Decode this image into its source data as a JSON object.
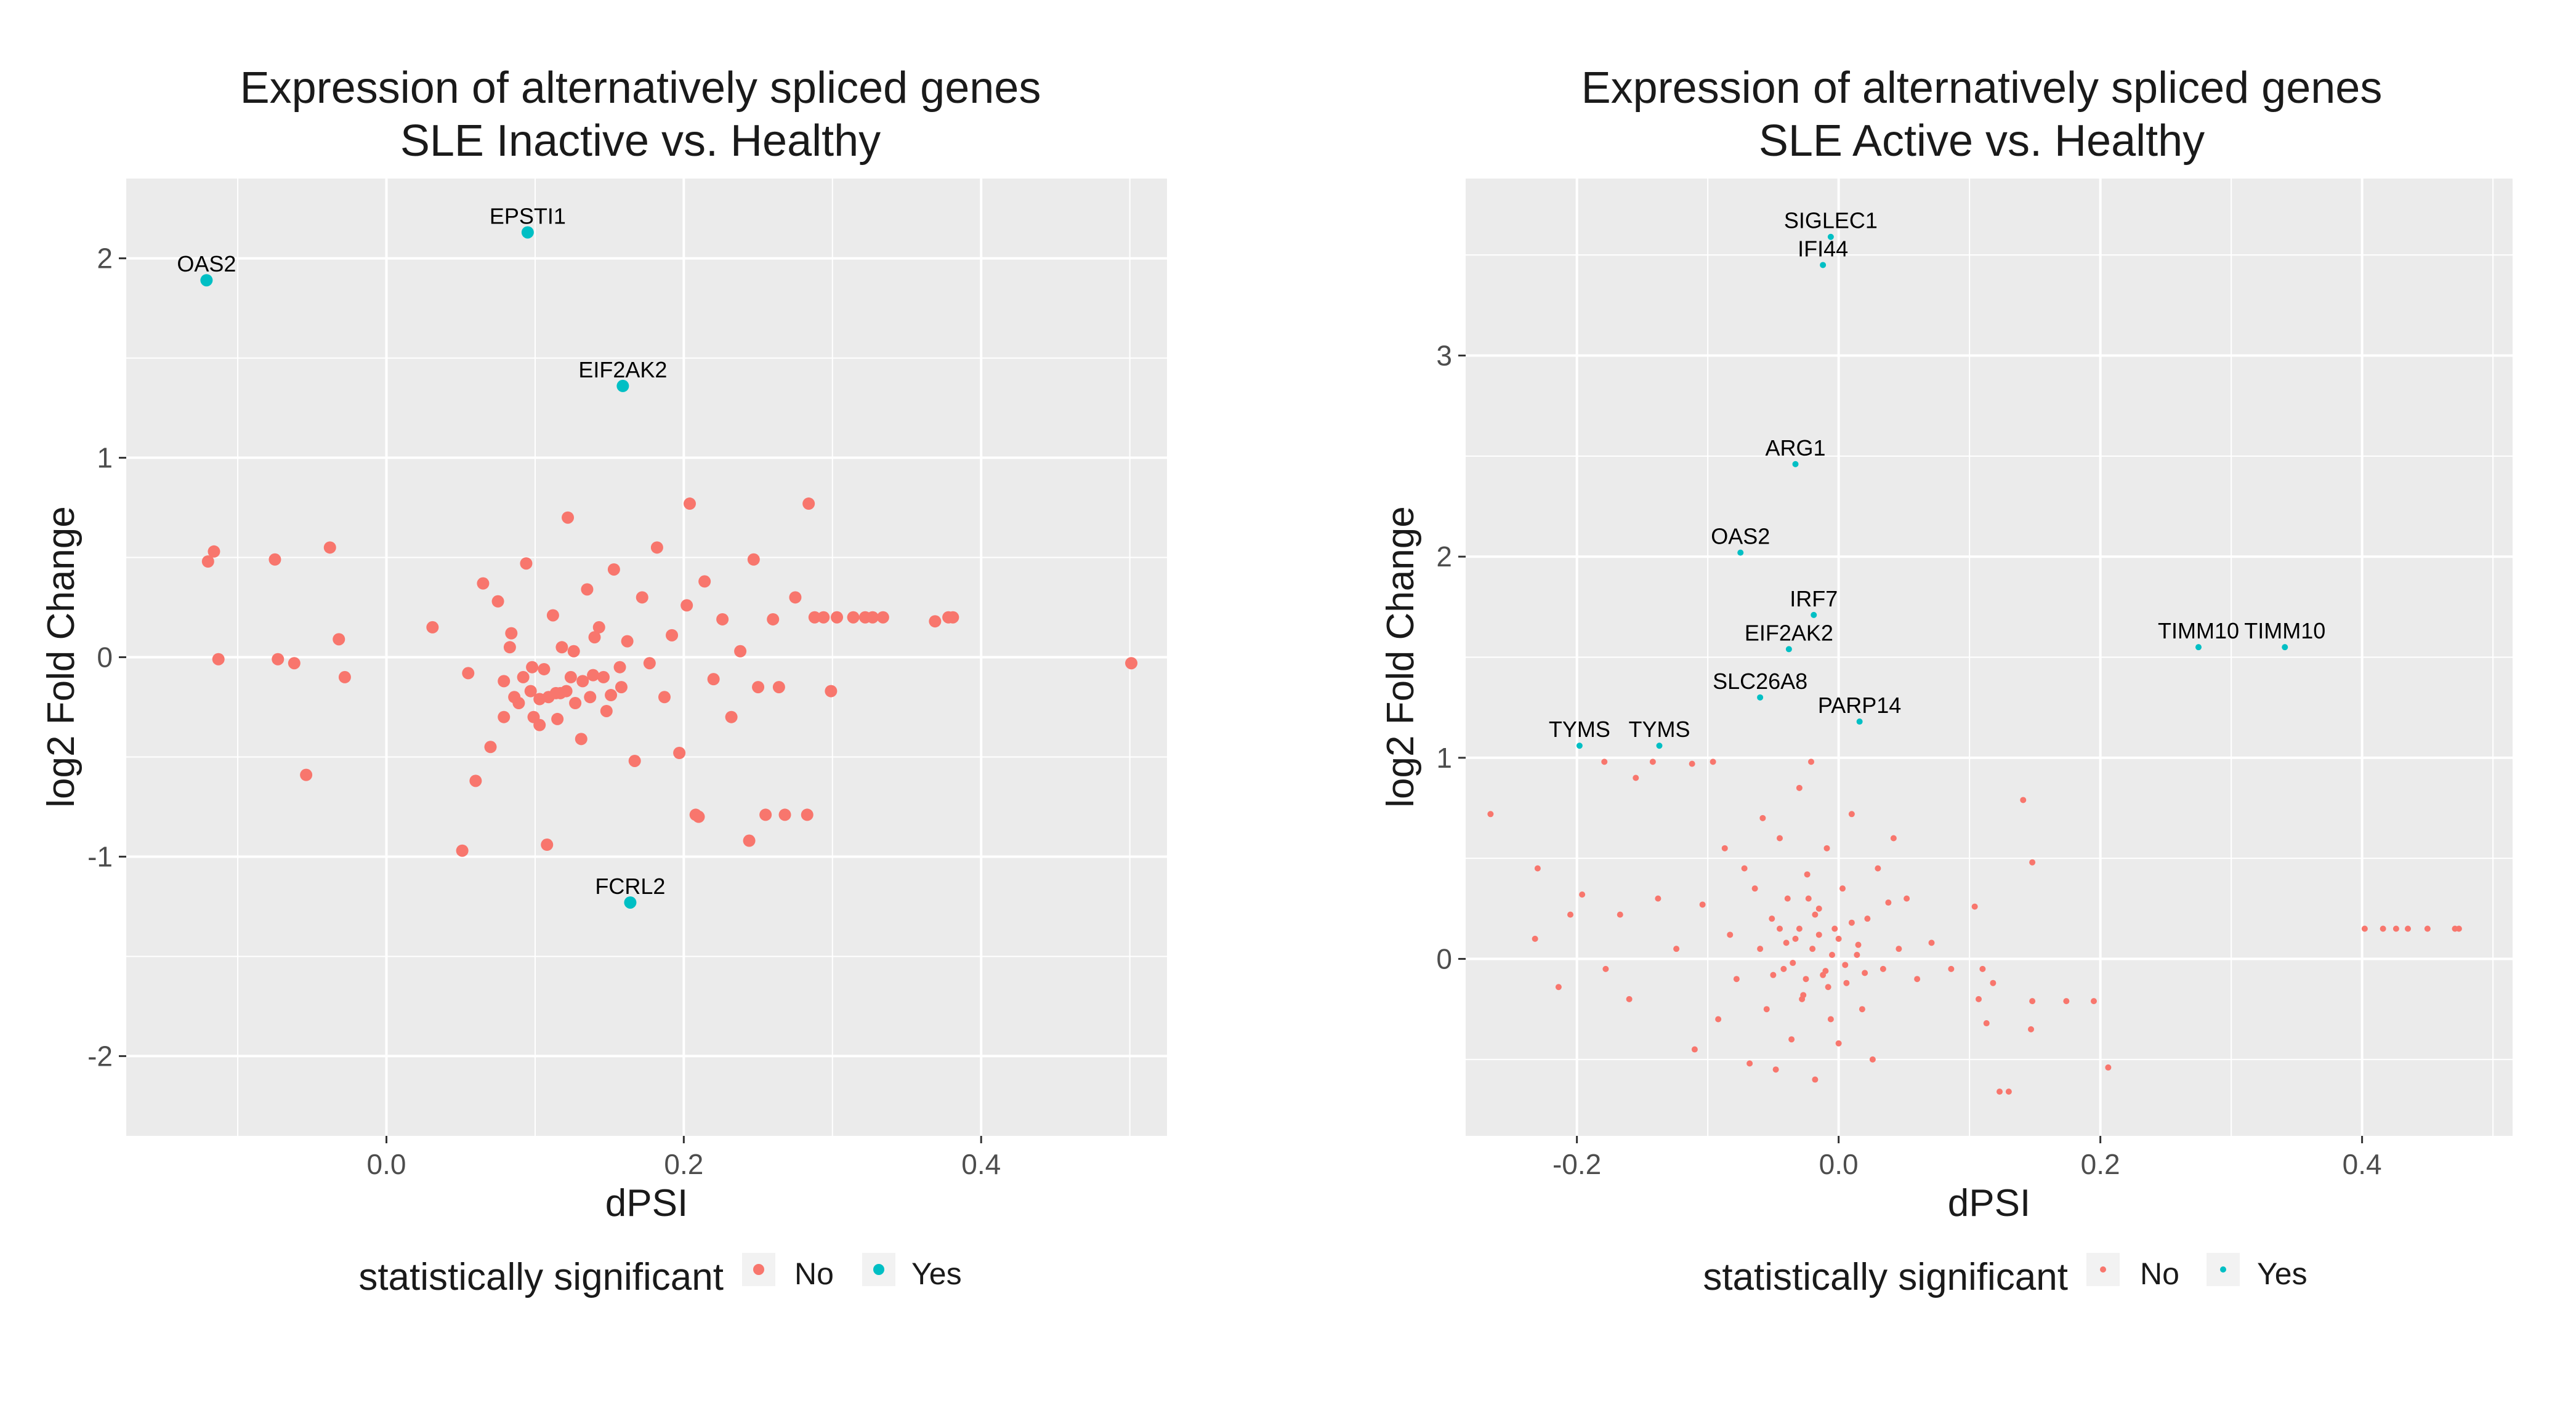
{
  "colors": {
    "no": "#F8766D",
    "yes": "#00BFC4",
    "panel": "#EBEBEB",
    "grid": "#FFFFFF",
    "text": "#1A1A1A",
    "axis": "#4D4D4D"
  },
  "chart_data": [
    {
      "type": "scatter",
      "title": [
        "Expression of alternatively spliced genes",
        "SLE Inactive vs. Healthy"
      ],
      "xlabel": "dPSI",
      "ylabel": "log2 Fold Change",
      "xlim": [
        -0.175,
        0.525
      ],
      "ylim": [
        -2.4,
        2.4
      ],
      "xticks": [
        0.0,
        0.2,
        0.4
      ],
      "xtick_labels": [
        "0.0",
        "0.2",
        "0.4"
      ],
      "yticks": [
        -2,
        -1,
        0,
        1,
        2
      ],
      "ytick_labels": [
        "-2",
        "-1",
        "0",
        "1",
        "2"
      ],
      "legend": {
        "title": "statistically significant",
        "position": "bottom",
        "entries": [
          "No",
          "Yes"
        ]
      },
      "series": [
        {
          "name": "No",
          "points": [
            [
              -0.12,
              0.48
            ],
            [
              -0.116,
              0.53
            ],
            [
              -0.113,
              -0.01
            ],
            [
              -0.075,
              0.49
            ],
            [
              -0.073,
              -0.01
            ],
            [
              -0.062,
              -0.03
            ],
            [
              -0.054,
              -0.59
            ],
            [
              -0.038,
              0.55
            ],
            [
              -0.032,
              0.09
            ],
            [
              -0.028,
              -0.1
            ],
            [
              0.031,
              0.15
            ],
            [
              0.051,
              -0.97
            ],
            [
              0.055,
              -0.08
            ],
            [
              0.06,
              -0.62
            ],
            [
              0.065,
              0.37
            ],
            [
              0.07,
              -0.45
            ],
            [
              0.075,
              0.28
            ],
            [
              0.079,
              -0.12
            ],
            [
              0.084,
              0.12
            ],
            [
              0.089,
              -0.23
            ],
            [
              0.094,
              0.47
            ],
            [
              0.098,
              -0.05
            ],
            [
              0.103,
              -0.34
            ],
            [
              0.108,
              -0.94
            ],
            [
              0.112,
              0.21
            ],
            [
              0.117,
              -0.18
            ],
            [
              0.122,
              0.7
            ],
            [
              0.126,
              0.03
            ],
            [
              0.131,
              -0.41
            ],
            [
              0.135,
              0.34
            ],
            [
              0.139,
              -0.09
            ],
            [
              0.143,
              0.15
            ],
            [
              0.148,
              -0.27
            ],
            [
              0.153,
              0.44
            ],
            [
              0.158,
              -0.15
            ],
            [
              0.162,
              0.08
            ],
            [
              0.167,
              -0.52
            ],
            [
              0.172,
              0.3
            ],
            [
              0.177,
              -0.03
            ],
            [
              0.182,
              0.55
            ],
            [
              0.187,
              -0.2
            ],
            [
              0.192,
              0.11
            ],
            [
              0.197,
              -0.48
            ],
            [
              0.202,
              0.26
            ],
            [
              0.208,
              -0.79
            ],
            [
              0.214,
              0.38
            ],
            [
              0.22,
              -0.11
            ],
            [
              0.226,
              0.19
            ],
            [
              0.232,
              -0.3
            ],
            [
              0.238,
              0.03
            ],
            [
              0.204,
              0.77
            ],
            [
              0.21,
              -0.8
            ],
            [
              0.247,
              0.49
            ],
            [
              0.244,
              -0.92
            ],
            [
              0.25,
              -0.15
            ],
            [
              0.255,
              -0.79
            ],
            [
              0.26,
              0.19
            ],
            [
              0.264,
              -0.15
            ],
            [
              0.268,
              -0.79
            ],
            [
              0.275,
              0.3
            ],
            [
              0.283,
              -0.79
            ],
            [
              0.284,
              0.77
            ],
            [
              0.288,
              0.2
            ],
            [
              0.294,
              0.2
            ],
            [
              0.299,
              -0.17
            ],
            [
              0.303,
              0.2
            ],
            [
              0.314,
              0.2
            ],
            [
              0.322,
              0.2
            ],
            [
              0.327,
              0.2
            ],
            [
              0.334,
              0.2
            ],
            [
              0.369,
              0.18
            ],
            [
              0.378,
              0.2
            ],
            [
              0.381,
              0.2
            ],
            [
              0.501,
              -0.03
            ],
            [
              0.097,
              -0.17
            ],
            [
              0.103,
              -0.21
            ],
            [
              0.109,
              -0.2
            ],
            [
              0.114,
              -0.18
            ],
            [
              0.121,
              -0.17
            ],
            [
              0.127,
              -0.23
            ],
            [
              0.132,
              -0.12
            ],
            [
              0.137,
              -0.2
            ],
            [
              0.099,
              -0.3
            ],
            [
              0.115,
              -0.31
            ],
            [
              0.124,
              -0.1
            ],
            [
              0.086,
              -0.2
            ],
            [
              0.092,
              -0.1
            ],
            [
              0.146,
              -0.1
            ],
            [
              0.151,
              -0.19
            ],
            [
              0.157,
              -0.05
            ],
            [
              0.079,
              -0.3
            ],
            [
              0.083,
              0.05
            ],
            [
              0.14,
              0.1
            ],
            [
              0.118,
              0.05
            ],
            [
              0.106,
              -0.06
            ]
          ]
        },
        {
          "name": "Yes",
          "points": [
            [
              -0.121,
              1.89
            ],
            [
              0.095,
              2.13
            ],
            [
              0.159,
              1.36
            ],
            [
              0.164,
              -1.23
            ]
          ]
        }
      ],
      "annotations": [
        {
          "label": "OAS2",
          "x": -0.121,
          "y": 1.89
        },
        {
          "label": "EPSTI1",
          "x": 0.095,
          "y": 2.13
        },
        {
          "label": "EIF2AK2",
          "x": 0.159,
          "y": 1.36
        },
        {
          "label": "FCRL2",
          "x": 0.164,
          "y": -1.23
        }
      ]
    },
    {
      "type": "scatter",
      "title": [
        "Expression of alternatively spliced genes",
        "SLE Active vs. Healthy"
      ],
      "xlabel": "dPSI",
      "ylabel": "log2 Fold Change",
      "xlim": [
        -0.285,
        0.515
      ],
      "ylim": [
        -0.88,
        3.88
      ],
      "xticks": [
        -0.2,
        0.0,
        0.2,
        0.4
      ],
      "xtick_labels": [
        "-0.2",
        "0.0",
        "0.2",
        "0.4"
      ],
      "yticks": [
        0,
        1,
        2,
        3
      ],
      "ytick_labels": [
        "0",
        "1",
        "2",
        "3"
      ],
      "legend": {
        "title": "statistically significant",
        "position": "bottom",
        "entries": [
          "No",
          "Yes"
        ]
      },
      "series": [
        {
          "name": "No",
          "points": [
            [
              -0.266,
              0.72
            ],
            [
              -0.232,
              0.1
            ],
            [
              -0.23,
              0.45
            ],
            [
              -0.214,
              -0.14
            ],
            [
              -0.205,
              0.22
            ],
            [
              -0.196,
              0.32
            ],
            [
              -0.179,
              0.98
            ],
            [
              -0.178,
              -0.05
            ],
            [
              -0.167,
              0.22
            ],
            [
              -0.16,
              -0.2
            ],
            [
              -0.155,
              0.9
            ],
            [
              -0.142,
              0.98
            ],
            [
              -0.138,
              0.3
            ],
            [
              -0.124,
              0.05
            ],
            [
              -0.112,
              0.97
            ],
            [
              -0.11,
              -0.45
            ],
            [
              -0.104,
              0.27
            ],
            [
              -0.096,
              0.98
            ],
            [
              -0.092,
              -0.3
            ],
            [
              -0.087,
              0.55
            ],
            [
              -0.083,
              0.12
            ],
            [
              -0.078,
              -0.1
            ],
            [
              -0.072,
              0.45
            ],
            [
              -0.068,
              -0.52
            ],
            [
              -0.064,
              0.35
            ],
            [
              -0.06,
              0.05
            ],
            [
              -0.058,
              0.7
            ],
            [
              -0.055,
              -0.25
            ],
            [
              -0.051,
              0.2
            ],
            [
              -0.048,
              -0.55
            ],
            [
              -0.045,
              0.6
            ],
            [
              -0.042,
              -0.05
            ],
            [
              -0.039,
              0.3
            ],
            [
              -0.036,
              -0.4
            ],
            [
              -0.033,
              0.1
            ],
            [
              -0.03,
              0.85
            ],
            [
              -0.027,
              -0.18
            ],
            [
              -0.024,
              0.42
            ],
            [
              -0.021,
              0.98
            ],
            [
              -0.018,
              -0.6
            ],
            [
              -0.015,
              0.25
            ],
            [
              -0.012,
              -0.08
            ],
            [
              -0.009,
              0.55
            ],
            [
              -0.006,
              -0.3
            ],
            [
              -0.003,
              0.15
            ],
            [
              0.0,
              -0.42
            ],
            [
              0.003,
              0.35
            ],
            [
              0.006,
              -0.12
            ],
            [
              0.01,
              0.72
            ],
            [
              0.014,
              0.02
            ],
            [
              0.018,
              -0.25
            ],
            [
              0.022,
              0.2
            ],
            [
              0.026,
              -0.5
            ],
            [
              0.03,
              0.45
            ],
            [
              0.034,
              -0.05
            ],
            [
              0.038,
              0.28
            ],
            [
              0.042,
              0.6
            ],
            [
              0.046,
              0.05
            ],
            [
              0.052,
              0.3
            ],
            [
              0.06,
              -0.1
            ],
            [
              0.071,
              0.08
            ],
            [
              0.086,
              -0.05
            ],
            [
              0.104,
              0.26
            ],
            [
              0.107,
              -0.2
            ],
            [
              0.11,
              -0.05
            ],
            [
              0.113,
              -0.32
            ],
            [
              0.118,
              -0.12
            ],
            [
              0.123,
              -0.66
            ],
            [
              0.13,
              -0.66
            ],
            [
              0.141,
              0.79
            ],
            [
              0.148,
              0.48
            ],
            [
              0.148,
              -0.21
            ],
            [
              0.147,
              -0.35
            ],
            [
              0.174,
              -0.21
            ],
            [
              0.195,
              -0.21
            ],
            [
              0.206,
              -0.54
            ],
            [
              0.402,
              0.15
            ],
            [
              0.416,
              0.15
            ],
            [
              0.426,
              0.15
            ],
            [
              0.435,
              0.15
            ],
            [
              0.45,
              0.15
            ],
            [
              0.471,
              0.15
            ],
            [
              0.474,
              0.15
            ],
            [
              -0.04,
              0.08
            ],
            [
              -0.035,
              -0.02
            ],
            [
              -0.03,
              0.15
            ],
            [
              -0.025,
              -0.1
            ],
            [
              -0.02,
              0.05
            ],
            [
              -0.015,
              0.12
            ],
            [
              -0.01,
              -0.06
            ],
            [
              -0.005,
              0.02
            ],
            [
              0.0,
              0.1
            ],
            [
              0.005,
              -0.03
            ],
            [
              0.01,
              0.18
            ],
            [
              -0.018,
              0.22
            ],
            [
              -0.028,
              -0.2
            ],
            [
              -0.008,
              -0.14
            ],
            [
              0.015,
              0.07
            ],
            [
              -0.045,
              0.15
            ],
            [
              -0.05,
              -0.08
            ],
            [
              0.02,
              -0.07
            ],
            [
              -0.023,
              0.3
            ]
          ]
        },
        {
          "name": "Yes",
          "points": [
            [
              -0.198,
              1.06
            ],
            [
              -0.137,
              1.06
            ],
            [
              -0.075,
              2.02
            ],
            [
              -0.06,
              1.3
            ],
            [
              -0.038,
              1.54
            ],
            [
              -0.033,
              2.46
            ],
            [
              -0.019,
              1.71
            ],
            [
              -0.006,
              3.59
            ],
            [
              -0.012,
              3.45
            ],
            [
              0.016,
              1.18
            ],
            [
              0.275,
              1.55
            ],
            [
              0.341,
              1.55
            ]
          ]
        }
      ],
      "annotations": [
        {
          "label": "SIGLEC1",
          "x": -0.006,
          "y": 3.59
        },
        {
          "label": "IFI44",
          "x": -0.012,
          "y": 3.45
        },
        {
          "label": "ARG1",
          "x": -0.033,
          "y": 2.46
        },
        {
          "label": "OAS2",
          "x": -0.075,
          "y": 2.02
        },
        {
          "label": "IRF7",
          "x": -0.019,
          "y": 1.71
        },
        {
          "label": "EIF2AK2",
          "x": -0.038,
          "y": 1.54
        },
        {
          "label": "SLC26A8",
          "x": -0.06,
          "y": 1.3
        },
        {
          "label": "PARP14",
          "x": 0.016,
          "y": 1.18
        },
        {
          "label": "TYMS",
          "x": -0.198,
          "y": 1.06
        },
        {
          "label": "TYMS",
          "x": -0.137,
          "y": 1.06
        },
        {
          "label": "TIMM10",
          "x": 0.275,
          "y": 1.55
        },
        {
          "label": "TIMM10",
          "x": 0.341,
          "y": 1.55
        }
      ]
    }
  ]
}
